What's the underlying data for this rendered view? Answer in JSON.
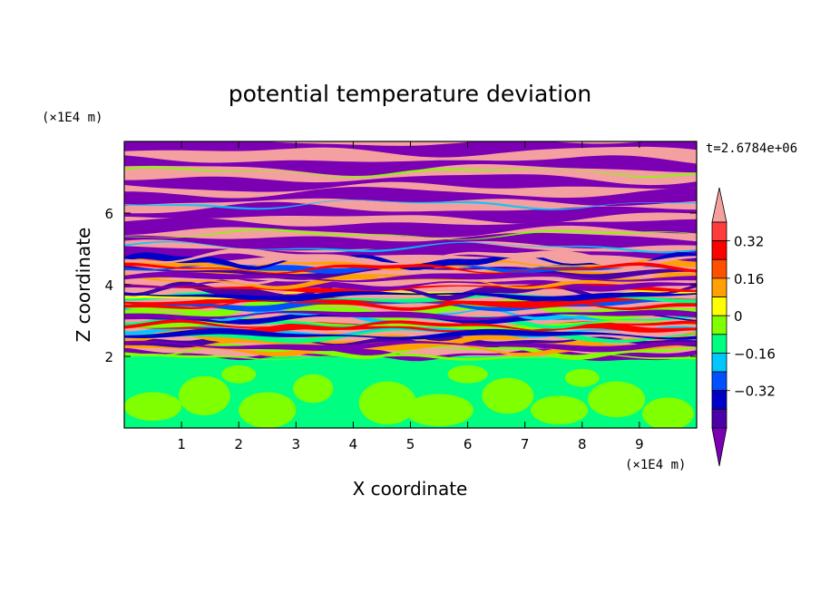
{
  "chart_data": {
    "type": "heatmap",
    "title": "potential temperature deviation",
    "xlabel": "X coordinate",
    "ylabel": "Z coordinate",
    "x_unit": "(×1E4 m)",
    "y_unit": "(×1E4 m)",
    "time_label": "t=2.6784e+06",
    "xlim": [
      0,
      10
    ],
    "ylim": [
      0,
      8
    ],
    "x_ticks": [
      "1",
      "2",
      "3",
      "4",
      "5",
      "6",
      "7",
      "8",
      "9"
    ],
    "y_ticks": [
      "2",
      "4",
      "6"
    ],
    "colorbar": {
      "levels": [
        -0.48,
        -0.4,
        -0.32,
        -0.24,
        -0.16,
        -0.08,
        0,
        0.08,
        0.16,
        0.24,
        0.32,
        0.4,
        0.48
      ],
      "colors": [
        "#7b00b4",
        "#4b00a8",
        "#0000c8",
        "#0050ff",
        "#00c8ff",
        "#00ff80",
        "#80ff00",
        "#ffff00",
        "#ffa000",
        "#ff5000",
        "#ff0000",
        "#ff3c3c",
        "#f5a0a0"
      ],
      "labels": [
        "0.32",
        "0.16",
        "0",
        "−0.16",
        "−0.32"
      ]
    },
    "regions": [
      {
        "z_range": [
          0,
          2
        ],
        "description": "mostly between -0.08 and 0.08"
      },
      {
        "z_range": [
          2,
          4.8
        ],
        "description": "mixed bands spanning -0.4 to 0.4"
      },
      {
        "z_range": [
          4.8,
          8
        ],
        "description": "alternating layers below -0.4 and above 0.4"
      }
    ]
  }
}
